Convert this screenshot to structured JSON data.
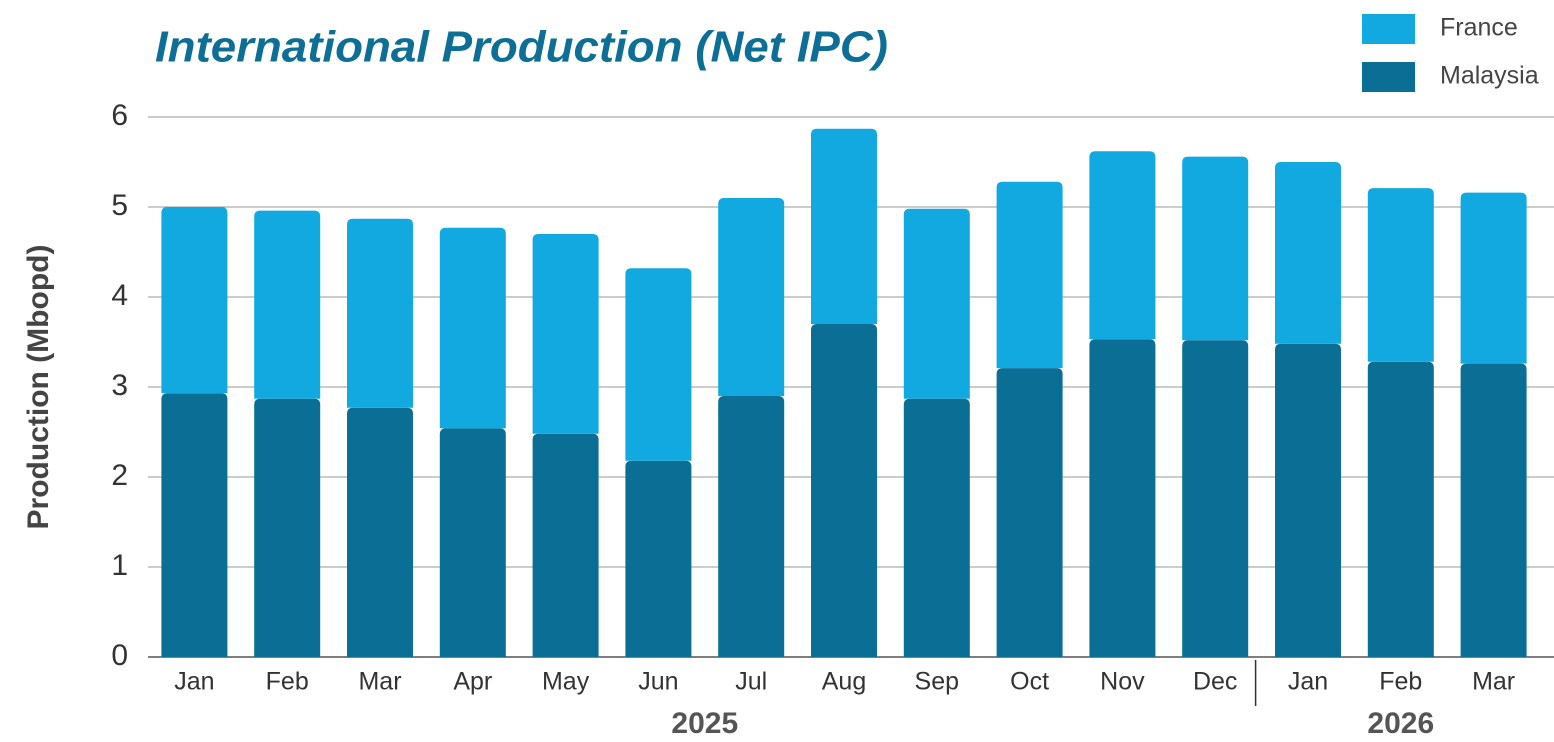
{
  "chart_data": {
    "type": "stacked_bar",
    "title": "International Production (Net IPC)",
    "y_label": "Production (Mbopd)",
    "categories": [
      "Jan",
      "Feb",
      "Mar",
      "Apr",
      "May",
      "Jun",
      "Jul",
      "Aug",
      "Sep",
      "Oct",
      "Nov",
      "Dec",
      "Jan",
      "Feb",
      "Mar"
    ],
    "year_groups": [
      {
        "label": "2025",
        "count": 12
      },
      {
        "label": "2026",
        "count": 3
      }
    ],
    "series": [
      {
        "name": "Malaysia",
        "color": "#0b6e94",
        "values": [
          2.93,
          2.87,
          2.77,
          2.54,
          2.48,
          2.18,
          2.9,
          3.7,
          2.87,
          3.21,
          3.53,
          3.52,
          3.48,
          3.28,
          3.26
        ]
      },
      {
        "name": "France",
        "color": "#12a8e0",
        "values": [
          2.07,
          2.09,
          2.1,
          2.23,
          2.22,
          2.14,
          2.2,
          2.17,
          2.11,
          2.07,
          2.09,
          2.04,
          2.02,
          1.93,
          1.9
        ]
      }
    ],
    "ylim": [
      0,
      6
    ],
    "yticks": [
      0,
      1,
      2,
      3,
      4,
      5,
      6
    ],
    "grid": true,
    "legend": "top-right"
  }
}
